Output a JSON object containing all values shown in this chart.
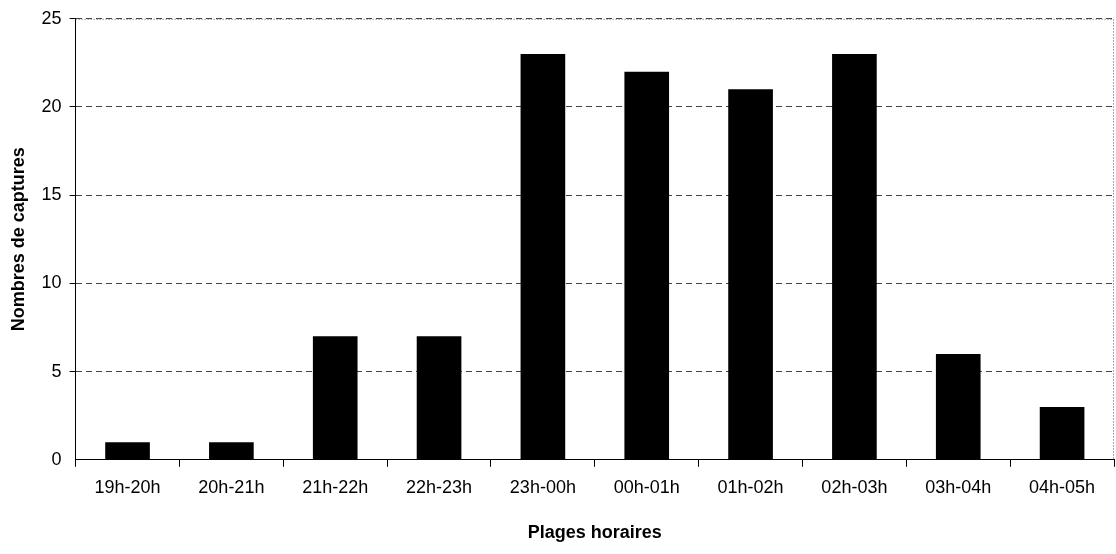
{
  "chart_data": {
    "type": "bar",
    "xlabel": "Plages horaires",
    "ylabel": "Nombres de captures",
    "categories": [
      "19h-20h",
      "20h-21h",
      "21h-22h",
      "22h-23h",
      "23h-00h",
      "00h-01h",
      "01h-02h",
      "02h-03h",
      "03h-04h",
      "04h-05h"
    ],
    "values": [
      1,
      1,
      7,
      7,
      23,
      22,
      21,
      23,
      6,
      3
    ],
    "color": "#000000",
    "ylim": [
      0,
      25
    ],
    "yticks": [
      0,
      5,
      10,
      15,
      20,
      25
    ],
    "grid": "y",
    "legend": false
  }
}
